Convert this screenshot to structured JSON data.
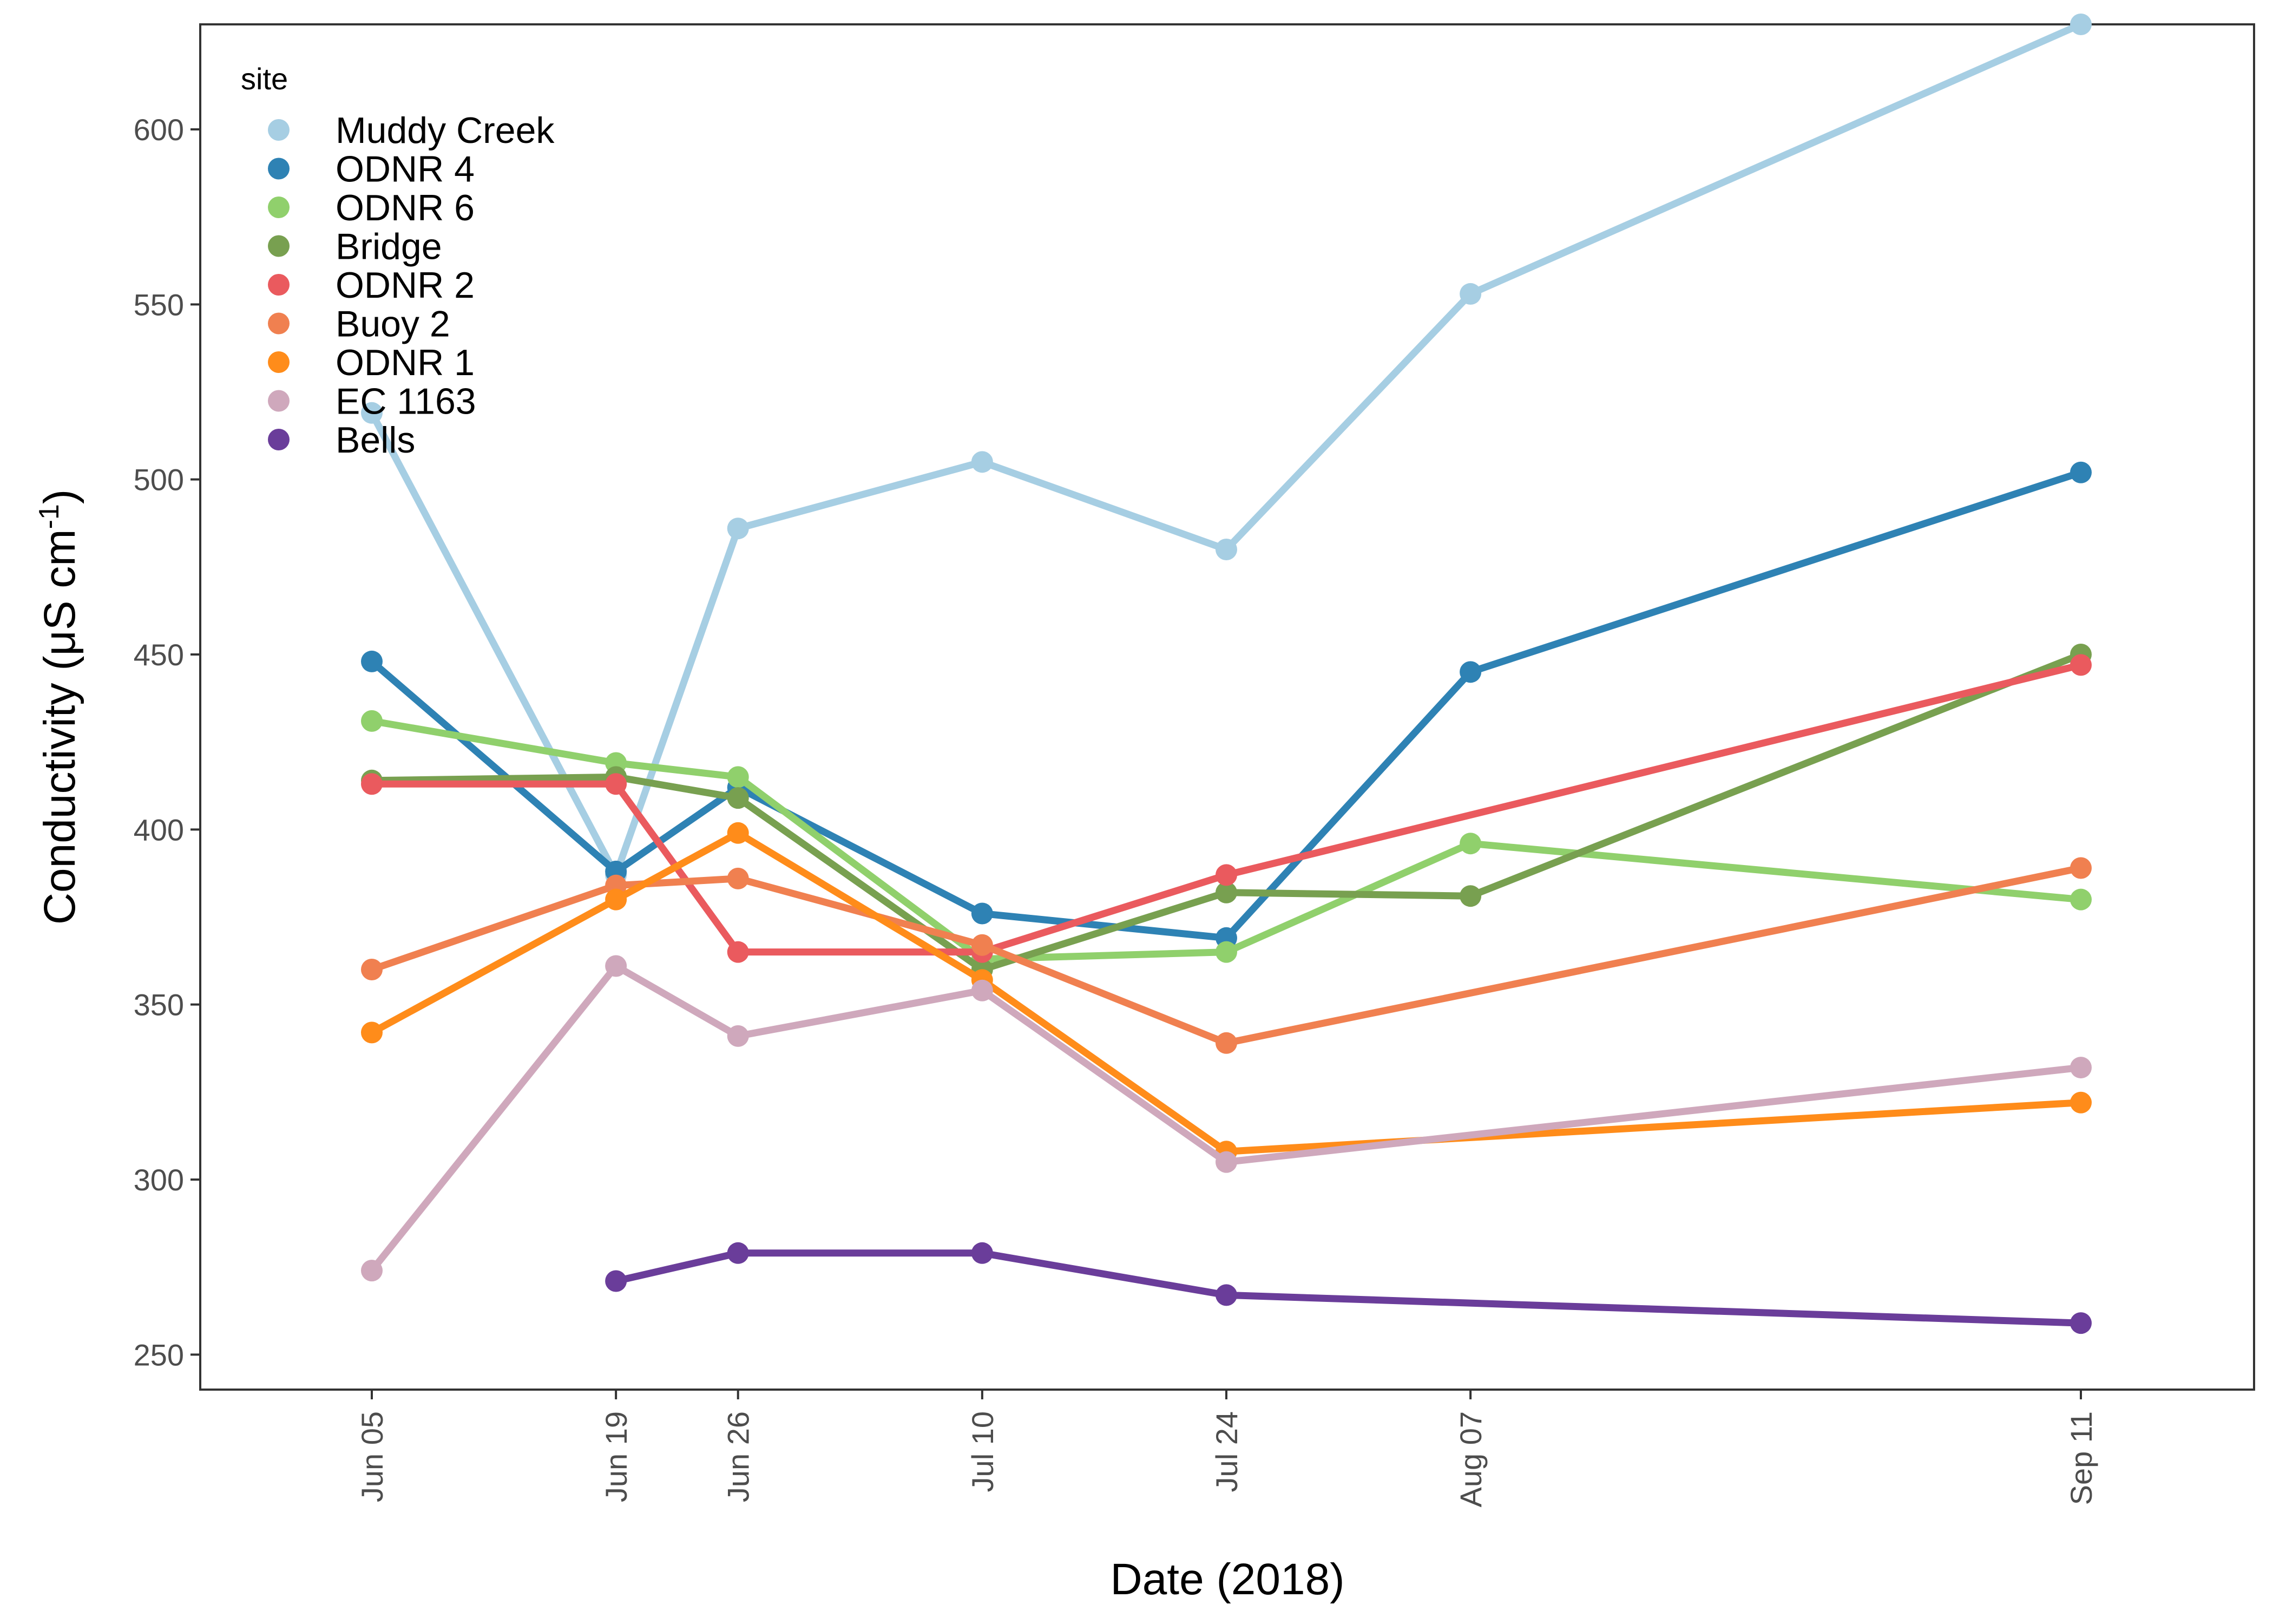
{
  "chart_data": {
    "type": "line",
    "xlabel": "Date (2018)",
    "ylabel": "Conductivity (μS cm",
    "ylabel_superscript": "-1",
    "ylabel_close": ")",
    "categories": [
      "Jun 05",
      "Jun 19",
      "Jun 26",
      "Jul 10",
      "Jul 24",
      "Aug 07",
      "Sep 11"
    ],
    "x_dates": [
      "2018-06-05",
      "2018-06-19",
      "2018-06-26",
      "2018-07-10",
      "2018-07-24",
      "2018-08-07",
      "2018-09-11"
    ],
    "ylim": [
      240,
      630
    ],
    "yticks": [
      250,
      300,
      350,
      400,
      450,
      500,
      550,
      600
    ],
    "grid": false,
    "legend": {
      "title": "site",
      "position": "top-left"
    },
    "series": [
      {
        "name": "Muddy Creek",
        "color": "#a6cee3",
        "values": [
          519,
          387,
          486,
          505,
          480,
          553,
          630
        ]
      },
      {
        "name": "ODNR 4",
        "color": "#2e82b4",
        "values": [
          448,
          388,
          412,
          376,
          369,
          445,
          502
        ]
      },
      {
        "name": "ODNR 6",
        "color": "#90d06c",
        "values": [
          431,
          419,
          415,
          363,
          365,
          396,
          380
        ]
      },
      {
        "name": "Bridge",
        "color": "#78a050",
        "values": [
          414,
          415,
          409,
          360,
          382,
          381,
          450
        ]
      },
      {
        "name": "ODNR 2",
        "color": "#ea5a5e",
        "values": [
          413,
          413,
          365,
          365,
          387,
          null,
          447
        ]
      },
      {
        "name": "Buoy 2",
        "color": "#f08050",
        "values": [
          360,
          384,
          386,
          367,
          339,
          null,
          389
        ]
      },
      {
        "name": "ODNR 1",
        "color": "#ff8c1a",
        "values": [
          342,
          380,
          399,
          357,
          308,
          null,
          322
        ]
      },
      {
        "name": "EC 1163",
        "color": "#cfa8bc",
        "values": [
          274,
          361,
          341,
          354,
          305,
          null,
          332
        ]
      },
      {
        "name": "Bells",
        "color": "#6a3d9a",
        "values": [
          null,
          271,
          279,
          279,
          267,
          null,
          259
        ]
      }
    ]
  }
}
